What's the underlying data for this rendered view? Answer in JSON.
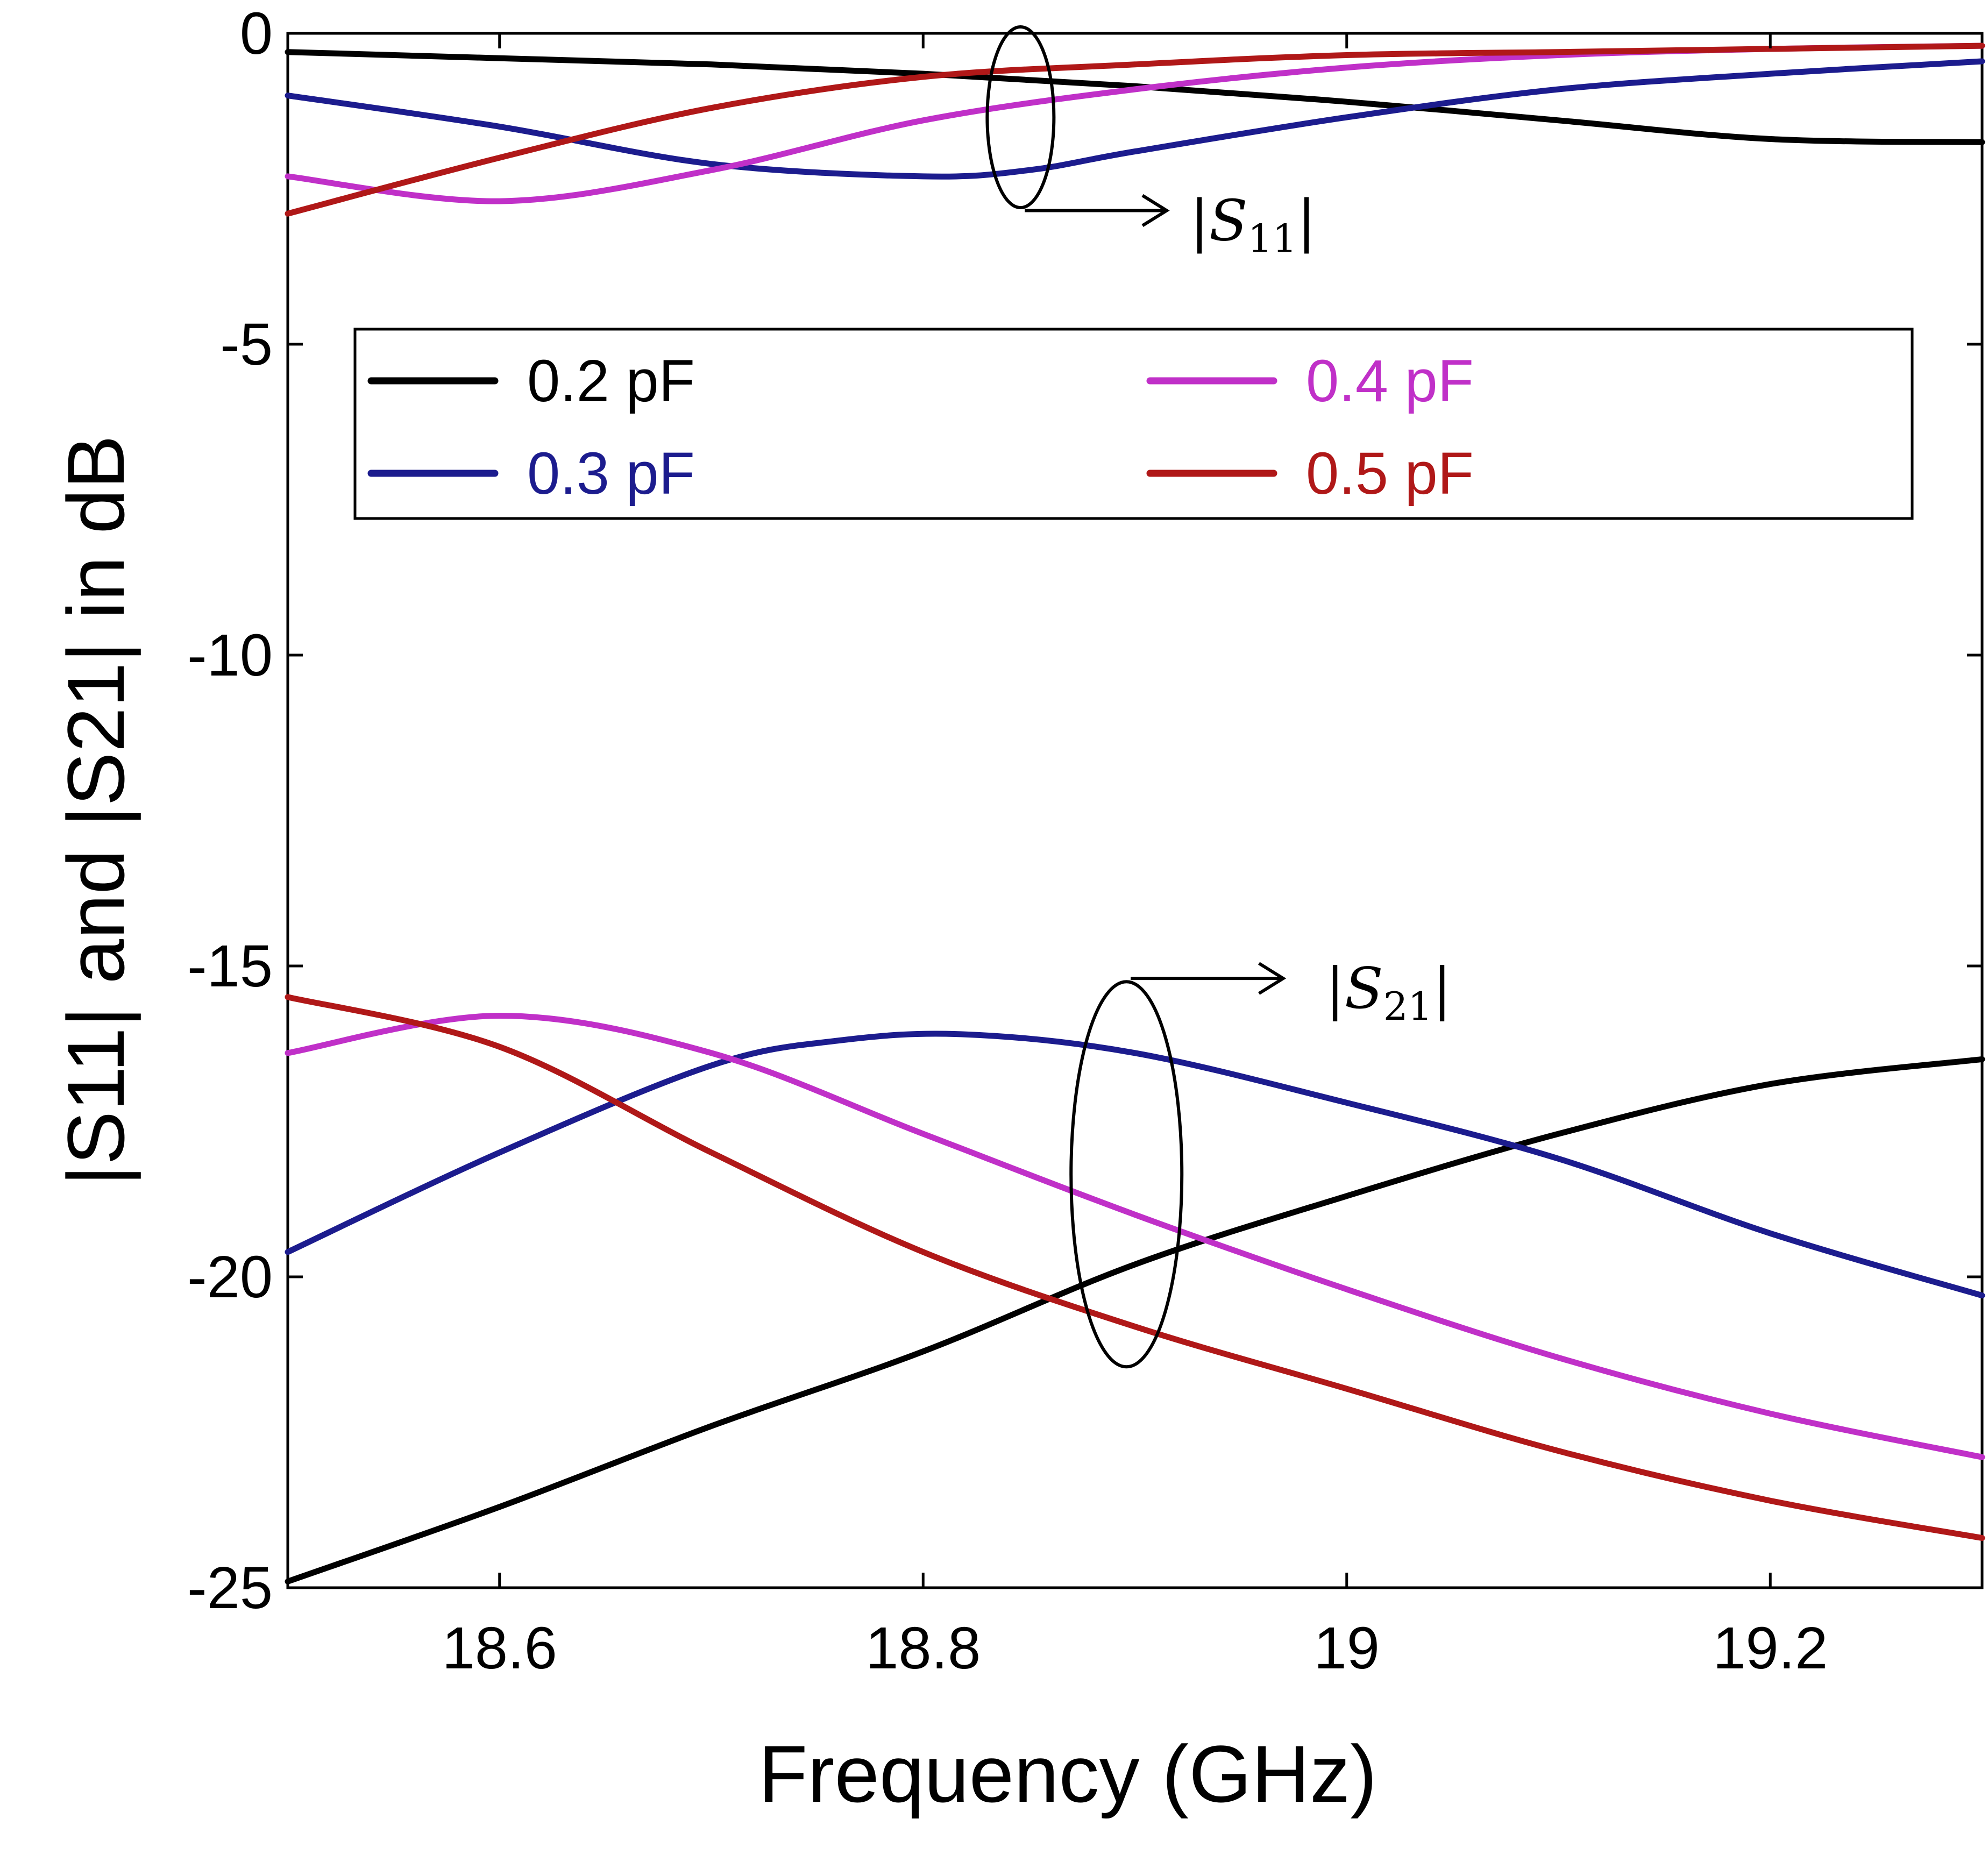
{
  "chart_data": {
    "type": "line",
    "title": "",
    "xlabel": "Frequency (GHz)",
    "ylabel": "|S11| and |S21| in dB",
    "xlim": [
      18.5,
      19.3
    ],
    "ylim": [
      -25,
      0
    ],
    "xticks": [
      18.6,
      18.8,
      19,
      19.2
    ],
    "xtick_labels": [
      "18.6",
      "18.8",
      "19",
      "19.2"
    ],
    "yticks": [
      0,
      -5,
      -10,
      -15,
      -20,
      -25
    ],
    "ytick_labels": [
      "0",
      "-5",
      "-10",
      "-15",
      "-20",
      "-25"
    ],
    "grid": false,
    "legend_position": "upper area, two columns",
    "series": [
      {
        "name": "0.2 pF",
        "color": "#000000",
        "group": "S11",
        "x": [
          18.5,
          18.6,
          18.7,
          18.8,
          18.9,
          19.0,
          19.1,
          19.2,
          19.3
        ],
        "y": [
          -0.3,
          -0.4,
          -0.5,
          -0.65,
          -0.85,
          -1.1,
          -1.4,
          -1.7,
          -1.75
        ]
      },
      {
        "name": "0.3 pF",
        "color": "#1c1c8e",
        "group": "S11",
        "x": [
          18.5,
          18.6,
          18.7,
          18.8,
          18.85,
          18.9,
          19.0,
          19.1,
          19.2,
          19.3
        ],
        "y": [
          -1.0,
          -1.5,
          -2.1,
          -2.3,
          -2.2,
          -1.9,
          -1.35,
          -0.9,
          -0.65,
          -0.45
        ]
      },
      {
        "name": "0.4 pF",
        "color": "#c030c8",
        "group": "S11",
        "x": [
          18.5,
          18.6,
          18.7,
          18.8,
          18.9,
          19.0,
          19.1,
          19.2,
          19.3
        ],
        "y": [
          -2.3,
          -2.7,
          -2.2,
          -1.4,
          -0.9,
          -0.55,
          -0.35,
          -0.25,
          -0.2
        ]
      },
      {
        "name": "0.5 pF",
        "color": "#b01818",
        "group": "S11",
        "x": [
          18.5,
          18.6,
          18.7,
          18.8,
          18.9,
          19.0,
          19.1,
          19.2,
          19.3
        ],
        "y": [
          -2.9,
          -2.0,
          -1.2,
          -0.7,
          -0.5,
          -0.35,
          -0.3,
          -0.25,
          -0.2
        ]
      },
      {
        "name": "0.2 pF",
        "color": "#000000",
        "group": "S21",
        "x": [
          18.5,
          18.6,
          18.7,
          18.8,
          18.9,
          19.0,
          19.1,
          19.2,
          19.3
        ],
        "y": [
          -24.9,
          -23.7,
          -22.4,
          -21.2,
          -19.8,
          -18.7,
          -17.7,
          -16.9,
          -16.5
        ]
      },
      {
        "name": "0.3 pF",
        "color": "#1c1c8e",
        "group": "S21",
        "x": [
          18.5,
          18.6,
          18.7,
          18.76,
          18.82,
          18.9,
          19.0,
          19.1,
          19.2,
          19.3
        ],
        "y": [
          -19.6,
          -18.0,
          -16.6,
          -16.2,
          -16.1,
          -16.4,
          -17.2,
          -18.1,
          -19.3,
          -20.3
        ]
      },
      {
        "name": "0.4 pF",
        "color": "#c030c8",
        "group": "S21",
        "x": [
          18.5,
          18.6,
          18.7,
          18.8,
          18.9,
          19.0,
          19.1,
          19.2,
          19.3
        ],
        "y": [
          -16.4,
          -15.8,
          -16.4,
          -17.7,
          -19.0,
          -20.2,
          -21.3,
          -22.2,
          -22.9
        ]
      },
      {
        "name": "0.5 pF",
        "color": "#b01818",
        "group": "S21",
        "x": [
          18.5,
          18.6,
          18.7,
          18.8,
          18.9,
          19.0,
          19.1,
          19.2,
          19.3
        ],
        "y": [
          -15.5,
          -16.3,
          -18.0,
          -19.6,
          -20.8,
          -21.8,
          -22.8,
          -23.6,
          -24.2
        ]
      }
    ],
    "legend": [
      {
        "label": "0.2 pF",
        "color": "#000000"
      },
      {
        "label": "0.3 pF",
        "color": "#1c1c8e"
      },
      {
        "label": "0.4 pF",
        "color": "#c030c8"
      },
      {
        "label": "0.5 pF",
        "color": "#b01818"
      }
    ],
    "annotations": [
      {
        "base": "|S",
        "sub": "11",
        "end": "|",
        "target_group": "S11"
      },
      {
        "base": "|S",
        "sub": "21",
        "end": "|",
        "target_group": "S21"
      }
    ]
  }
}
